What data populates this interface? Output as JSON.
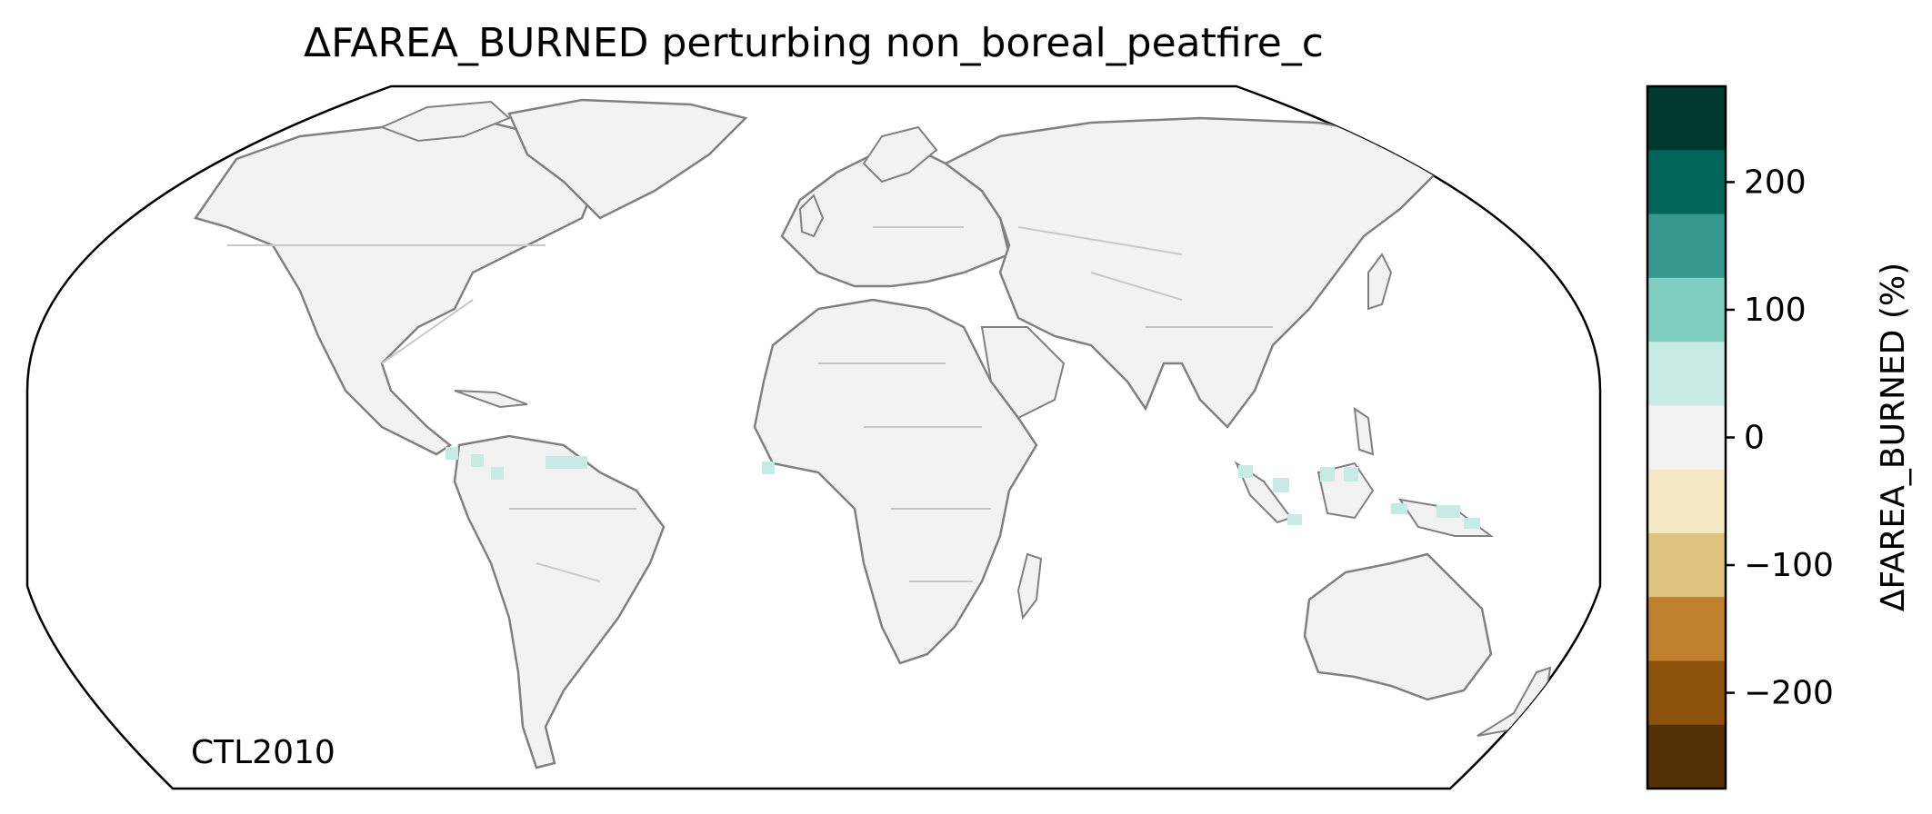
{
  "figure": {
    "title": "ΔFAREA_BURNED perturbing non_boreal_peatfire_c",
    "run_label": "CTL2010"
  },
  "map": {
    "projection": "Robinson",
    "land_color": "#f2f2f2",
    "coastline_color": "#808080",
    "border_color": "#c8c8c8",
    "positive_regions": [
      "Central America",
      "northern Colombia",
      "Venezuela coast",
      "West Africa coast",
      "Sumatra",
      "Borneo",
      "New Guinea"
    ]
  },
  "colorbar": {
    "label": "ΔFAREA_BURNED (%)",
    "ticks": [
      {
        "value": 200,
        "text": "200"
      },
      {
        "value": 100,
        "text": "100"
      },
      {
        "value": 0,
        "text": "0"
      },
      {
        "value": -100,
        "text": "−100"
      },
      {
        "value": -200,
        "text": "−200"
      }
    ],
    "range": [
      -275,
      275
    ],
    "bins": [
      {
        "from": 225,
        "to": 275,
        "color": "#01392f"
      },
      {
        "from": 175,
        "to": 225,
        "color": "#02655b"
      },
      {
        "from": 125,
        "to": 175,
        "color": "#35978f"
      },
      {
        "from": 75,
        "to": 125,
        "color": "#80cdc1"
      },
      {
        "from": 25,
        "to": 75,
        "color": "#c7eae5"
      },
      {
        "from": -25,
        "to": 25,
        "color": "#f2f2f2"
      },
      {
        "from": -75,
        "to": -25,
        "color": "#f6e8c3"
      },
      {
        "from": -125,
        "to": -75,
        "color": "#dfc27d"
      },
      {
        "from": -175,
        "to": -125,
        "color": "#bf812d"
      },
      {
        "from": -225,
        "to": -175,
        "color": "#8c510a"
      },
      {
        "from": -275,
        "to": -225,
        "color": "#543005"
      }
    ]
  }
}
